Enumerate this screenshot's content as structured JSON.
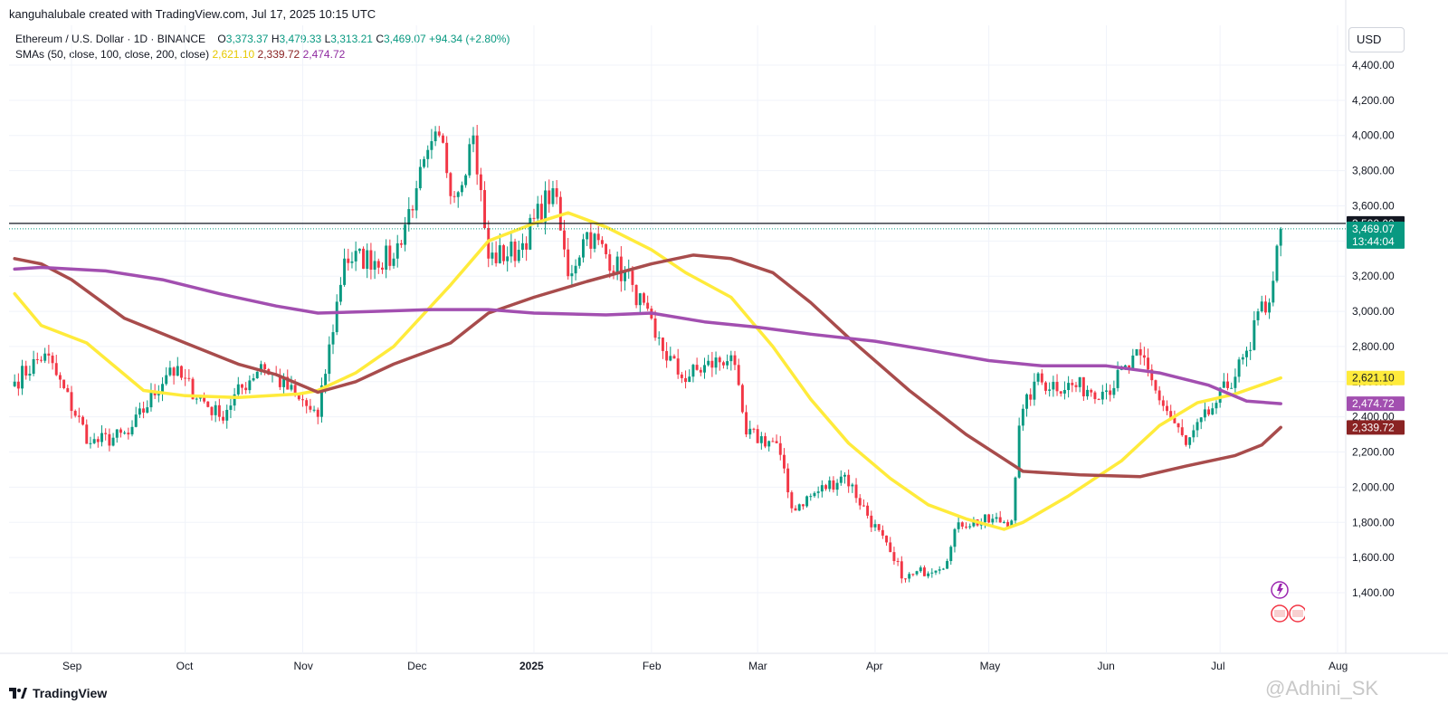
{
  "header": {
    "created_by": "kanguhalubale created with TradingView.com, Jul 17, 2025 10:15 UTC"
  },
  "legend": {
    "symbol": "Ethereum / U.S. Dollar · 1D · BINANCE",
    "o_label": "O",
    "o_value": "3,373.37",
    "h_label": "H",
    "h_value": "3,479.33",
    "l_label": "L",
    "l_value": "3,313.21",
    "c_label": "C",
    "c_value": "3,469.07",
    "change": "+94.34 (+2.80%)",
    "sma_label": "SMAs (50, close, 100, close, 200, close)",
    "sma50": "2,621.10",
    "sma100": "2,339.72",
    "sma200": "2,474.72"
  },
  "currency_button": "USD",
  "footer": {
    "brand": "TradingView",
    "watermark": "@Adhini_SK"
  },
  "colors": {
    "up": "#089981",
    "down": "#f23645",
    "sma50": "#ffeb3b",
    "sma100": "#a84c4c",
    "sma200": "#a24fb0",
    "grid": "#f0f3fa",
    "line3500": "#131722"
  },
  "chart_data": {
    "type": "candlestick",
    "title": "Ethereum / U.S. Dollar · 1D · BINANCE",
    "ylim": [
      1300,
      4600
    ],
    "y_ticks": [
      1400,
      1600,
      1800,
      2000,
      2200,
      2400,
      2600,
      2800,
      3000,
      3200,
      3400,
      3600,
      3800,
      4000,
      4200,
      4400
    ],
    "y_tick_labels": [
      "1,400.00",
      "1,600.00",
      "1,800.00",
      "2,000.00",
      "2,200.00",
      "2,400.00",
      "2,600.00",
      "2,800.00",
      "3,000.00",
      "3,200.00",
      "3,400.00",
      "3,600.00",
      "3,800.00",
      "4,000.00",
      "4,200.00",
      "4,400.00"
    ],
    "x_ticks": [
      "Sep",
      "Oct",
      "Nov",
      "Dec",
      "2025",
      "Feb",
      "Mar",
      "Apr",
      "May",
      "Jun",
      "Jul",
      "Aug"
    ],
    "x_tick_dates": [
      "2024-09-01",
      "2024-10-01",
      "2024-11-01",
      "2024-12-01",
      "2025-01-01",
      "2025-02-01",
      "2025-03-01",
      "2025-04-01",
      "2025-05-01",
      "2025-06-01",
      "2025-07-01",
      "2025-08-01"
    ],
    "horizontal_line": {
      "value": 3500,
      "label": "3,500.00"
    },
    "last_price": {
      "value": 3469.07,
      "label": "3,469.07",
      "countdown": "13:44:04"
    },
    "grid": true,
    "anchors": [
      [
        "2024-08-17",
        2600
      ],
      [
        "2024-08-25",
        2760
      ],
      [
        "2024-09-06",
        2250
      ],
      [
        "2024-09-16",
        2300
      ],
      [
        "2024-09-27",
        2680
      ],
      [
        "2024-10-10",
        2400
      ],
      [
        "2024-10-21",
        2700
      ],
      [
        "2024-10-31",
        2500
      ],
      [
        "2024-11-05",
        2400
      ],
      [
        "2024-11-12",
        3300
      ],
      [
        "2024-11-25",
        3300
      ],
      [
        "2024-12-01",
        3700
      ],
      [
        "2024-12-07",
        4000
      ],
      [
        "2024-12-11",
        3650
      ],
      [
        "2024-12-16",
        4000
      ],
      [
        "2024-12-20",
        3300
      ],
      [
        "2024-12-28",
        3350
      ],
      [
        "2025-01-06",
        3700
      ],
      [
        "2025-01-10",
        3200
      ],
      [
        "2025-01-15",
        3450
      ],
      [
        "2025-01-27",
        3150
      ],
      [
        "2025-02-02",
        2850
      ],
      [
        "2025-02-09",
        2620
      ],
      [
        "2025-02-22",
        2750
      ],
      [
        "2025-02-26",
        2300
      ],
      [
        "2025-03-06",
        2250
      ],
      [
        "2025-03-10",
        1880
      ],
      [
        "2025-03-24",
        2070
      ],
      [
        "2025-04-06",
        1580
      ],
      [
        "2025-04-09",
        1480
      ],
      [
        "2025-04-20",
        1580
      ],
      [
        "2025-04-23",
        1800
      ],
      [
        "2025-05-07",
        1810
      ],
      [
        "2025-05-09",
        2350
      ],
      [
        "2025-05-13",
        2600
      ],
      [
        "2025-06-01",
        2550
      ],
      [
        "2025-06-10",
        2750
      ],
      [
        "2025-06-14",
        2550
      ],
      [
        "2025-06-22",
        2240
      ],
      [
        "2025-06-30",
        2480
      ],
      [
        "2025-07-09",
        2780
      ],
      [
        "2025-07-11",
        3000
      ],
      [
        "2025-07-14",
        3050
      ],
      [
        "2025-07-16",
        3373
      ],
      [
        "2025-07-17",
        3469
      ]
    ],
    "series": [
      {
        "name": "SMA 50",
        "color": "#ffeb3b",
        "value_last": 2621.1,
        "points": [
          [
            "2024-08-17",
            3100
          ],
          [
            "2024-08-24",
            2920
          ],
          [
            "2024-09-05",
            2820
          ],
          [
            "2024-09-20",
            2550
          ],
          [
            "2024-10-01",
            2520
          ],
          [
            "2024-10-15",
            2510
          ],
          [
            "2024-10-31",
            2530
          ],
          [
            "2024-11-05",
            2550
          ],
          [
            "2024-11-15",
            2650
          ],
          [
            "2024-11-25",
            2800
          ],
          [
            "2024-12-10",
            3150
          ],
          [
            "2024-12-20",
            3400
          ],
          [
            "2025-01-01",
            3500
          ],
          [
            "2025-01-10",
            3560
          ],
          [
            "2025-01-20",
            3480
          ],
          [
            "2025-02-01",
            3350
          ],
          [
            "2025-02-10",
            3220
          ],
          [
            "2025-02-22",
            3080
          ],
          [
            "2025-03-05",
            2800
          ],
          [
            "2025-03-15",
            2500
          ],
          [
            "2025-03-25",
            2250
          ],
          [
            "2025-04-05",
            2050
          ],
          [
            "2025-04-15",
            1900
          ],
          [
            "2025-04-25",
            1820
          ],
          [
            "2025-05-05",
            1760
          ],
          [
            "2025-05-10",
            1800
          ],
          [
            "2025-05-22",
            1950
          ],
          [
            "2025-06-05",
            2150
          ],
          [
            "2025-06-15",
            2350
          ],
          [
            "2025-06-25",
            2480
          ],
          [
            "2025-07-05",
            2530
          ],
          [
            "2025-07-17",
            2621
          ]
        ]
      },
      {
        "name": "SMA 100",
        "color": "#a84c4c",
        "value_last": 2339.72,
        "points": [
          [
            "2024-08-17",
            3300
          ],
          [
            "2024-08-24",
            3270
          ],
          [
            "2024-09-01",
            3180
          ],
          [
            "2024-09-15",
            2960
          ],
          [
            "2024-10-01",
            2820
          ],
          [
            "2024-10-15",
            2700
          ],
          [
            "2024-10-25",
            2640
          ],
          [
            "2024-11-05",
            2540
          ],
          [
            "2024-11-15",
            2600
          ],
          [
            "2024-11-25",
            2700
          ],
          [
            "2024-12-10",
            2820
          ],
          [
            "2024-12-20",
            2990
          ],
          [
            "2025-01-01",
            3080
          ],
          [
            "2025-01-15",
            3170
          ],
          [
            "2025-02-01",
            3270
          ],
          [
            "2025-02-12",
            3320
          ],
          [
            "2025-02-22",
            3300
          ],
          [
            "2025-03-05",
            3220
          ],
          [
            "2025-03-15",
            3050
          ],
          [
            "2025-03-25",
            2850
          ],
          [
            "2025-04-10",
            2550
          ],
          [
            "2025-04-25",
            2300
          ],
          [
            "2025-05-10",
            2090
          ],
          [
            "2025-05-25",
            2070
          ],
          [
            "2025-06-10",
            2060
          ],
          [
            "2025-06-22",
            2120
          ],
          [
            "2025-07-05",
            2180
          ],
          [
            "2025-07-12",
            2240
          ],
          [
            "2025-07-17",
            2340
          ]
        ]
      },
      {
        "name": "SMA 200",
        "color": "#a24fb0",
        "value_last": 2474.72,
        "points": [
          [
            "2024-08-17",
            3240
          ],
          [
            "2024-08-24",
            3250
          ],
          [
            "2024-09-10",
            3230
          ],
          [
            "2024-09-25",
            3180
          ],
          [
            "2024-10-10",
            3100
          ],
          [
            "2024-10-25",
            3030
          ],
          [
            "2024-11-05",
            2990
          ],
          [
            "2024-11-20",
            3000
          ],
          [
            "2024-12-05",
            3010
          ],
          [
            "2024-12-20",
            3010
          ],
          [
            "2025-01-01",
            2990
          ],
          [
            "2025-01-20",
            2980
          ],
          [
            "2025-02-01",
            2990
          ],
          [
            "2025-02-15",
            2940
          ],
          [
            "2025-03-01",
            2910
          ],
          [
            "2025-03-15",
            2870
          ],
          [
            "2025-04-01",
            2830
          ],
          [
            "2025-04-15",
            2780
          ],
          [
            "2025-05-01",
            2720
          ],
          [
            "2025-05-15",
            2690
          ],
          [
            "2025-06-01",
            2690
          ],
          [
            "2025-06-15",
            2650
          ],
          [
            "2025-06-28",
            2580
          ],
          [
            "2025-07-08",
            2490
          ],
          [
            "2025-07-17",
            2475
          ]
        ]
      }
    ]
  }
}
